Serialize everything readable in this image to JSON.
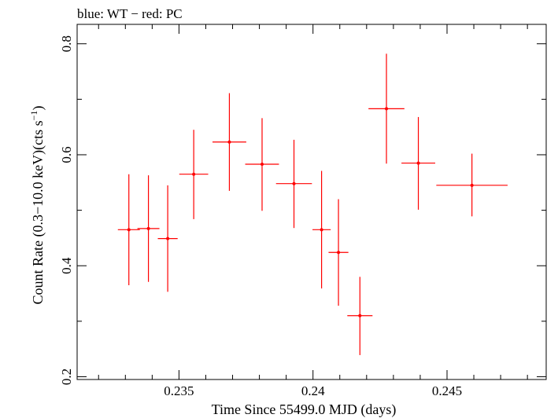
{
  "chart_data": {
    "type": "scatter",
    "title": "blue: WT − red: PC",
    "xlabel": "Time Since 55499.0 MJD (days)",
    "ylabel_main": "Count Rate (0.3−10.0 keV)(cts s",
    "ylabel_sup": "−1",
    "ylabel_end": ")",
    "xlim": [
      0.2312,
      0.2487
    ],
    "ylim": [
      0.195,
      0.835
    ],
    "x_ticks": [
      {
        "value": 0.235,
        "label": "0.235"
      },
      {
        "value": 0.24,
        "label": "0.24"
      },
      {
        "value": 0.245,
        "label": "0.245"
      }
    ],
    "y_ticks": [
      {
        "value": 0.2,
        "label": "0.2"
      },
      {
        "value": 0.4,
        "label": "0.4"
      },
      {
        "value": 0.6,
        "label": "0.6"
      },
      {
        "value": 0.8,
        "label": "0.8"
      }
    ],
    "grid": false,
    "series": [
      {
        "color": "#ff0000",
        "points": [
          {
            "x": 0.23313,
            "xerr": 0.00041,
            "y": 0.465,
            "ylo": 0.365,
            "yhi": 0.565
          },
          {
            "x": 0.23386,
            "xerr": 0.00041,
            "y": 0.467,
            "ylo": 0.371,
            "yhi": 0.563
          },
          {
            "x": 0.23458,
            "xerr": 0.00037,
            "y": 0.449,
            "ylo": 0.353,
            "yhi": 0.545
          },
          {
            "x": 0.23555,
            "xerr": 0.00054,
            "y": 0.565,
            "ylo": 0.484,
            "yhi": 0.645
          },
          {
            "x": 0.23688,
            "xerr": 0.00063,
            "y": 0.623,
            "ylo": 0.535,
            "yhi": 0.711
          },
          {
            "x": 0.2381,
            "xerr": 0.00063,
            "y": 0.583,
            "ylo": 0.499,
            "yhi": 0.666
          },
          {
            "x": 0.23929,
            "xerr": 0.00067,
            "y": 0.548,
            "ylo": 0.468,
            "yhi": 0.627
          },
          {
            "x": 0.24032,
            "xerr": 0.00034,
            "y": 0.465,
            "ylo": 0.359,
            "yhi": 0.571
          },
          {
            "x": 0.24095,
            "xerr": 0.00037,
            "y": 0.424,
            "ylo": 0.328,
            "yhi": 0.52
          },
          {
            "x": 0.24175,
            "xerr": 0.00047,
            "y": 0.31,
            "ylo": 0.239,
            "yhi": 0.38
          },
          {
            "x": 0.24274,
            "xerr": 0.00067,
            "y": 0.683,
            "ylo": 0.584,
            "yhi": 0.782
          },
          {
            "x": 0.24393,
            "xerr": 0.00063,
            "y": 0.585,
            "ylo": 0.501,
            "yhi": 0.668
          },
          {
            "x": 0.24593,
            "xerr": 0.00133,
            "y": 0.545,
            "ylo": 0.489,
            "yhi": 0.602
          }
        ]
      }
    ]
  }
}
